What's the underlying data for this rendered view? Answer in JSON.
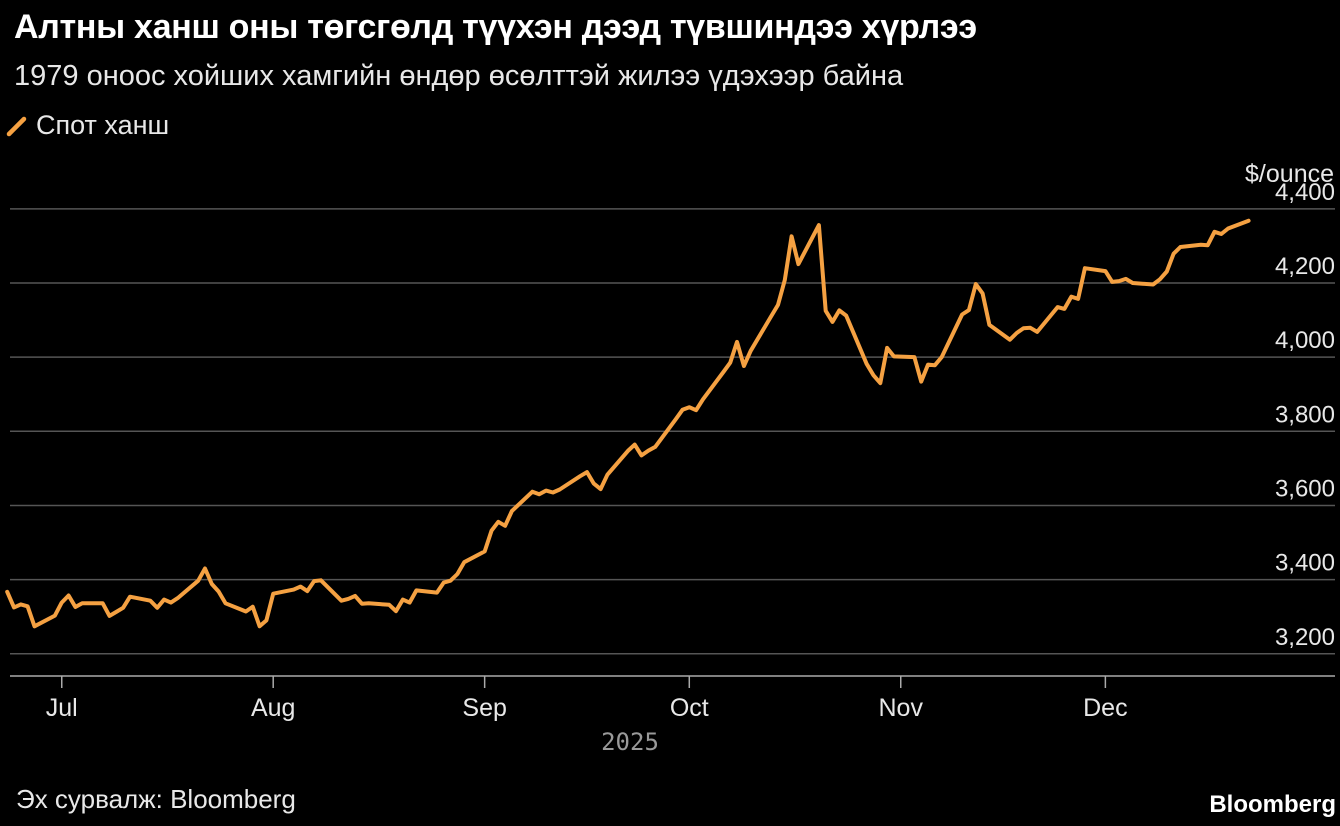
{
  "title": "Алтны ханш оны төгсгөлд түүхэн дээд түвшиндээ хүрлээ",
  "subtitle": "1979 оноос хойших хамгийн өндөр өсөлттэй жилээ үдэхээр байна",
  "source": "Эх сурвалж: Bloomberg",
  "brand": "Bloomberg",
  "colors": {
    "line": "#f5a142",
    "grid": "#555555",
    "background": "#000000",
    "text": "#e8e8e8"
  },
  "chart_data": {
    "type": "line",
    "ylabel": "$/ounce",
    "ylim": [
      3140,
      4440
    ],
    "xlim": [
      "2025-06-24",
      "2025-12-31"
    ],
    "y_ticks": [
      3200,
      3400,
      3600,
      3800,
      4000,
      4200,
      4400
    ],
    "y_tick_labels": [
      "3,200",
      "3,400",
      "3,600",
      "3,800",
      "4,000",
      "4,200",
      "4,400"
    ],
    "x_ticks": [
      "2025-07-01",
      "2025-08-01",
      "2025-09-01",
      "2025-10-01",
      "2025-11-01",
      "2025-12-01"
    ],
    "x_tick_labels": [
      "Jul",
      "Aug",
      "Sep",
      "Oct",
      "Nov",
      "Dec"
    ],
    "x_year_label": "2025",
    "grid": true,
    "legend_position": "top-left",
    "series": [
      {
        "name": "Спот ханш",
        "color": "#f5a142",
        "points": [
          [
            "2025-06-23",
            3367
          ],
          [
            "2025-06-24",
            3325
          ],
          [
            "2025-06-25",
            3333
          ],
          [
            "2025-06-26",
            3328
          ],
          [
            "2025-06-27",
            3274
          ],
          [
            "2025-06-30",
            3303
          ],
          [
            "2025-07-01",
            3338
          ],
          [
            "2025-07-02",
            3357
          ],
          [
            "2025-07-03",
            3326
          ],
          [
            "2025-07-04",
            3336
          ],
          [
            "2025-07-07",
            3336
          ],
          [
            "2025-07-08",
            3302
          ],
          [
            "2025-07-09",
            3313
          ],
          [
            "2025-07-10",
            3324
          ],
          [
            "2025-07-11",
            3354
          ],
          [
            "2025-07-14",
            3343
          ],
          [
            "2025-07-15",
            3324
          ],
          [
            "2025-07-16",
            3346
          ],
          [
            "2025-07-17",
            3338
          ],
          [
            "2025-07-18",
            3350
          ],
          [
            "2025-07-21",
            3397
          ],
          [
            "2025-07-22",
            3430
          ],
          [
            "2025-07-23",
            3388
          ],
          [
            "2025-07-24",
            3368
          ],
          [
            "2025-07-25",
            3336
          ],
          [
            "2025-07-28",
            3314
          ],
          [
            "2025-07-29",
            3327
          ],
          [
            "2025-07-30",
            3274
          ],
          [
            "2025-07-31",
            3290
          ],
          [
            "2025-08-01",
            3362
          ],
          [
            "2025-08-04",
            3373
          ],
          [
            "2025-08-05",
            3381
          ],
          [
            "2025-08-06",
            3369
          ],
          [
            "2025-08-07",
            3396
          ],
          [
            "2025-08-08",
            3398
          ],
          [
            "2025-08-11",
            3343
          ],
          [
            "2025-08-12",
            3348
          ],
          [
            "2025-08-13",
            3356
          ],
          [
            "2025-08-14",
            3335
          ],
          [
            "2025-08-15",
            3336
          ],
          [
            "2025-08-18",
            3332
          ],
          [
            "2025-08-19",
            3315
          ],
          [
            "2025-08-20",
            3346
          ],
          [
            "2025-08-21",
            3338
          ],
          [
            "2025-08-22",
            3371
          ],
          [
            "2025-08-25",
            3365
          ],
          [
            "2025-08-26",
            3392
          ],
          [
            "2025-08-27",
            3397
          ],
          [
            "2025-08-28",
            3415
          ],
          [
            "2025-08-29",
            3447
          ],
          [
            "2025-09-01",
            3476
          ],
          [
            "2025-09-02",
            3532
          ],
          [
            "2025-09-03",
            3556
          ],
          [
            "2025-09-04",
            3545
          ],
          [
            "2025-09-05",
            3585
          ],
          [
            "2025-09-08",
            3637
          ],
          [
            "2025-09-09",
            3630
          ],
          [
            "2025-09-10",
            3640
          ],
          [
            "2025-09-11",
            3635
          ],
          [
            "2025-09-12",
            3643
          ],
          [
            "2025-09-15",
            3679
          ],
          [
            "2025-09-16",
            3690
          ],
          [
            "2025-09-17",
            3659
          ],
          [
            "2025-09-18",
            3644
          ],
          [
            "2025-09-19",
            3683
          ],
          [
            "2025-09-22",
            3747
          ],
          [
            "2025-09-23",
            3764
          ],
          [
            "2025-09-24",
            3735
          ],
          [
            "2025-09-25",
            3748
          ],
          [
            "2025-09-26",
            3758
          ],
          [
            "2025-09-29",
            3832
          ],
          [
            "2025-09-30",
            3858
          ],
          [
            "2025-10-01",
            3865
          ],
          [
            "2025-10-02",
            3857
          ],
          [
            "2025-10-03",
            3886
          ],
          [
            "2025-10-06",
            3960
          ],
          [
            "2025-10-07",
            3985
          ],
          [
            "2025-10-08",
            4041
          ],
          [
            "2025-10-09",
            3976
          ],
          [
            "2025-10-10",
            4017
          ],
          [
            "2025-10-13",
            4110
          ],
          [
            "2025-10-14",
            4141
          ],
          [
            "2025-10-15",
            4208
          ],
          [
            "2025-10-16",
            4326
          ],
          [
            "2025-10-17",
            4251
          ],
          [
            "2025-10-20",
            4356
          ],
          [
            "2025-10-21",
            4125
          ],
          [
            "2025-10-22",
            4095
          ],
          [
            "2025-10-23",
            4126
          ],
          [
            "2025-10-24",
            4112
          ],
          [
            "2025-10-27",
            3982
          ],
          [
            "2025-10-28",
            3951
          ],
          [
            "2025-10-29",
            3930
          ],
          [
            "2025-10-30",
            4025
          ],
          [
            "2025-10-31",
            4002
          ],
          [
            "2025-11-03",
            4000
          ],
          [
            "2025-11-04",
            3934
          ],
          [
            "2025-11-05",
            3980
          ],
          [
            "2025-11-06",
            3978
          ],
          [
            "2025-11-07",
            4000
          ],
          [
            "2025-11-10",
            4115
          ],
          [
            "2025-11-11",
            4127
          ],
          [
            "2025-11-12",
            4197
          ],
          [
            "2025-11-13",
            4172
          ],
          [
            "2025-11-14",
            4087
          ],
          [
            "2025-11-17",
            4047
          ],
          [
            "2025-11-18",
            4065
          ],
          [
            "2025-11-19",
            4078
          ],
          [
            "2025-11-20",
            4079
          ],
          [
            "2025-11-21",
            4068
          ],
          [
            "2025-11-24",
            4135
          ],
          [
            "2025-11-25",
            4130
          ],
          [
            "2025-11-26",
            4163
          ],
          [
            "2025-11-27",
            4157
          ],
          [
            "2025-11-28",
            4240
          ],
          [
            "2025-12-01",
            4232
          ],
          [
            "2025-12-02",
            4203
          ],
          [
            "2025-12-03",
            4205
          ],
          [
            "2025-12-04",
            4211
          ],
          [
            "2025-12-05",
            4200
          ],
          [
            "2025-12-08",
            4196
          ],
          [
            "2025-12-09",
            4210
          ],
          [
            "2025-12-10",
            4231
          ],
          [
            "2025-12-11",
            4279
          ],
          [
            "2025-12-12",
            4297
          ],
          [
            "2025-12-15",
            4303
          ],
          [
            "2025-12-16",
            4302
          ],
          [
            "2025-12-17",
            4338
          ],
          [
            "2025-12-18",
            4332
          ],
          [
            "2025-12-19",
            4347
          ],
          [
            "2025-12-22",
            4368
          ]
        ]
      }
    ]
  }
}
